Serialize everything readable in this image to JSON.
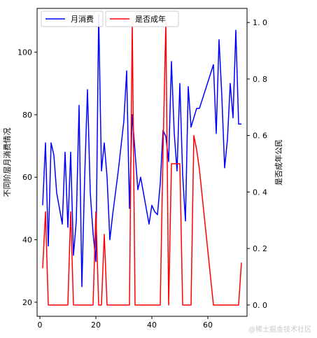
{
  "chart_data": {
    "type": "line",
    "ylabel_left": "不同阶层月消费情况",
    "ylabel_right": "是否成年公民",
    "xlim": [
      -1,
      74
    ],
    "ylim_left": [
      15.5,
      114
    ],
    "ylim_right": [
      -0.04,
      1.05
    ],
    "xticks": [
      0,
      20,
      40,
      60
    ],
    "yticks_left": [
      20,
      40,
      60,
      80,
      100
    ],
    "yticks_right": [
      0.0,
      0.2,
      0.4,
      0.6,
      0.8,
      1.0
    ],
    "ytick_labels_right": [
      "0. 0",
      "0. 2",
      "0. 4",
      "0. 6",
      "0. 8",
      "1. 0"
    ],
    "legend_position": "top-left",
    "grid": false,
    "series": [
      {
        "name": "月消费",
        "color": "#0000ff",
        "axis": "left",
        "x": [
          1,
          2,
          3,
          4,
          5,
          6,
          7,
          8,
          9,
          10,
          11,
          12,
          13,
          14,
          15,
          16,
          17,
          18,
          19,
          20,
          21,
          22,
          23,
          24,
          25,
          26,
          28,
          30,
          31,
          32,
          33,
          34,
          35,
          36,
          38,
          39,
          40,
          41,
          42,
          43,
          44,
          45,
          46,
          47,
          48,
          49,
          50,
          51,
          52,
          53,
          54,
          55,
          56,
          57,
          62,
          63,
          64,
          65,
          66,
          67,
          68,
          69,
          70,
          71,
          72
        ],
        "y": [
          51,
          71,
          38,
          71,
          67,
          55,
          50,
          45,
          68,
          44,
          68,
          35,
          46,
          83,
          25,
          60,
          88,
          55,
          42,
          33,
          112,
          62,
          71,
          60,
          40,
          48,
          62,
          78,
          94,
          50,
          80,
          68,
          56,
          60,
          50,
          45,
          51,
          49,
          48,
          58,
          75,
          73,
          65,
          97,
          74,
          62,
          90,
          61,
          46,
          89,
          76,
          79,
          82,
          82,
          96,
          74,
          104,
          86,
          63,
          72,
          90,
          79,
          107,
          77,
          77
        ]
      },
      {
        "name": "是否成年",
        "color": "#ff0000",
        "axis": "right",
        "x": [
          1,
          2,
          3,
          4,
          5,
          6,
          7,
          8,
          9,
          10,
          11,
          12,
          13,
          14,
          15,
          16,
          17,
          18,
          19,
          20,
          21,
          22,
          23,
          24,
          25,
          26,
          28,
          30,
          31,
          32,
          33,
          34,
          35,
          36,
          38,
          39,
          40,
          41,
          42,
          43,
          44,
          45,
          46,
          47,
          48,
          49,
          50,
          51,
          52,
          53,
          54,
          55,
          56,
          57,
          62,
          63,
          64,
          65,
          66,
          67,
          68,
          69,
          70,
          71,
          72
        ],
        "y": [
          0.13,
          0.33,
          0,
          0,
          0,
          0,
          0,
          0,
          0,
          0,
          0.33,
          0,
          0,
          0,
          0,
          0,
          0,
          0,
          0,
          0.33,
          0,
          0,
          0.25,
          0,
          0,
          0,
          0,
          0,
          0,
          0,
          1.0,
          0,
          0,
          0,
          0,
          0,
          0,
          0,
          0,
          0,
          0.55,
          1.0,
          0,
          0.5,
          0.5,
          0.5,
          0.5,
          0,
          0,
          0,
          0,
          0.6,
          0.55,
          0.48,
          0,
          0,
          0,
          0,
          0,
          0,
          0,
          0,
          0,
          0,
          0.15
        ]
      }
    ]
  },
  "watermark": "@稀土掘金技术社区"
}
